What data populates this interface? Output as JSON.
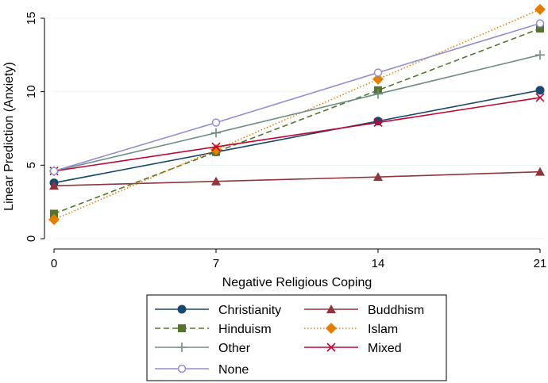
{
  "chart_data": {
    "type": "line",
    "title": "",
    "xlabel": "Negative Religious Coping",
    "ylabel": "Linear Prediction (Anxiety)",
    "x": [
      0,
      7,
      14,
      21
    ],
    "xlim": [
      0,
      21
    ],
    "ylim": [
      0,
      16
    ],
    "xticks": [
      0,
      7,
      14,
      21
    ],
    "yticks": [
      0,
      5,
      10,
      15
    ],
    "xtick_labels": [
      "0",
      "7",
      "14",
      "21"
    ],
    "ytick_labels": [
      "0",
      "5",
      "10",
      "15"
    ],
    "grid": true,
    "legend_position": "bottom",
    "series": [
      {
        "name": "Christianity",
        "values": [
          3.8,
          5.9,
          8.0,
          10.1
        ],
        "color": "#1a476f",
        "marker": "circle",
        "dash": "solid"
      },
      {
        "name": "Buddhism",
        "values": [
          3.6,
          3.9,
          4.2,
          4.55
        ],
        "color": "#90353b",
        "marker": "triangle",
        "dash": "solid"
      },
      {
        "name": "Hinduism",
        "values": [
          1.7,
          5.9,
          10.1,
          14.3
        ],
        "color": "#55752f",
        "marker": "square",
        "dash": "dashed"
      },
      {
        "name": "Islam",
        "values": [
          1.3,
          6.05,
          10.85,
          15.6
        ],
        "color": "#e37e00",
        "marker": "diamond",
        "dash": "dotted"
      },
      {
        "name": "Other",
        "values": [
          4.6,
          7.2,
          9.85,
          12.5
        ],
        "color": "#6e8e84",
        "marker": "plus",
        "dash": "solid"
      },
      {
        "name": "Mixed",
        "values": [
          4.6,
          6.25,
          7.9,
          9.6
        ],
        "color": "#c10534",
        "marker": "x",
        "dash": "solid"
      },
      {
        "name": "None",
        "values": [
          4.6,
          7.9,
          11.3,
          14.65
        ],
        "color": "#938dd2",
        "marker": "hollow-circle",
        "dash": "solid"
      }
    ]
  }
}
